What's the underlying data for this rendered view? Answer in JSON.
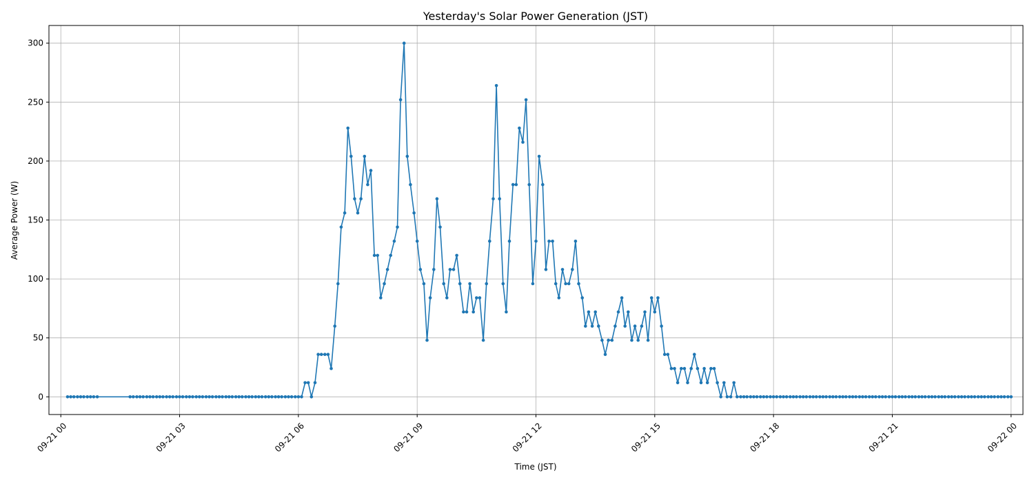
{
  "chart_data": {
    "type": "line",
    "title": "Yesterday's Solar Power Generation (JST)",
    "xlabel": "Time (JST)",
    "ylabel": "Average Power (W)",
    "x_unit": "hours since 09-21 00:00 JST",
    "xlim": [
      -0.3,
      24.3
    ],
    "ylim": [
      -15,
      315
    ],
    "grid": true,
    "x_ticks": [
      {
        "v": 0,
        "label": "09-21 00"
      },
      {
        "v": 3,
        "label": "09-21 03"
      },
      {
        "v": 6,
        "label": "09-21 06"
      },
      {
        "v": 9,
        "label": "09-21 09"
      },
      {
        "v": 12,
        "label": "09-21 12"
      },
      {
        "v": 15,
        "label": "09-21 15"
      },
      {
        "v": 18,
        "label": "09-21 18"
      },
      {
        "v": 21,
        "label": "09-21 21"
      },
      {
        "v": 24,
        "label": "09-22 00"
      }
    ],
    "y_ticks": [
      0,
      50,
      100,
      150,
      200,
      250,
      300
    ],
    "series": [
      {
        "name": "",
        "color": "#1f77b4",
        "x": [
          0.17,
          0.25,
          0.33,
          0.42,
          0.5,
          0.58,
          0.67,
          0.75,
          0.83,
          0.92,
          1.75,
          1.83,
          1.92,
          2,
          2.08,
          2.17,
          2.25,
          2.33,
          2.42,
          2.5,
          2.58,
          2.67,
          2.75,
          2.83,
          2.92,
          3,
          3.08,
          3.17,
          3.25,
          3.33,
          3.42,
          3.5,
          3.58,
          3.67,
          3.75,
          3.83,
          3.92,
          4,
          4.08,
          4.17,
          4.25,
          4.33,
          4.42,
          4.5,
          4.58,
          4.67,
          4.75,
          4.83,
          4.92,
          5,
          5.08,
          5.17,
          5.25,
          5.33,
          5.42,
          5.5,
          5.58,
          5.67,
          5.75,
          5.83,
          5.92,
          6,
          6.08,
          6.17,
          6.25,
          6.33,
          6.42,
          6.5,
          6.58,
          6.67,
          6.75,
          6.83,
          6.92,
          7,
          7.08,
          7.17,
          7.25,
          7.33,
          7.42,
          7.5,
          7.58,
          7.67,
          7.75,
          7.83,
          7.92,
          8,
          8.08,
          8.17,
          8.25,
          8.33,
          8.42,
          8.5,
          8.58,
          8.67,
          8.75,
          8.83,
          8.92,
          9,
          9.08,
          9.17,
          9.25,
          9.33,
          9.42,
          9.5,
          9.58,
          9.67,
          9.75,
          9.83,
          9.92,
          10,
          10.08,
          10.17,
          10.25,
          10.33,
          10.42,
          10.5,
          10.58,
          10.67,
          10.75,
          10.83,
          10.92,
          11,
          11.08,
          11.17,
          11.25,
          11.33,
          11.42,
          11.5,
          11.58,
          11.67,
          11.75,
          11.83,
          11.92,
          12,
          12.08,
          12.17,
          12.25,
          12.33,
          12.42,
          12.5,
          12.58,
          12.67,
          12.75,
          12.83,
          12.92,
          13,
          13.08,
          13.17,
          13.25,
          13.33,
          13.42,
          13.5,
          13.58,
          13.67,
          13.75,
          13.83,
          13.92,
          14,
          14.08,
          14.17,
          14.25,
          14.33,
          14.42,
          14.5,
          14.58,
          14.67,
          14.75,
          14.83,
          14.92,
          15,
          15.08,
          15.17,
          15.25,
          15.33,
          15.42,
          15.5,
          15.58,
          15.67,
          15.75,
          15.83,
          15.92,
          16,
          16.08,
          16.17,
          16.25,
          16.33,
          16.42,
          16.5,
          16.58,
          16.67,
          16.75,
          16.83,
          16.92,
          17,
          17.08,
          17.17,
          17.25,
          17.33,
          17.42,
          17.5,
          17.58,
          17.67,
          17.75,
          17.83,
          17.92,
          18,
          18.08,
          18.17,
          18.25,
          18.33,
          18.42,
          18.5,
          18.58,
          18.67,
          18.75,
          18.83,
          18.92,
          19,
          19.08,
          19.17,
          19.25,
          19.33,
          19.42,
          19.5,
          19.58,
          19.67,
          19.75,
          19.83,
          19.92,
          20,
          20.08,
          20.17,
          20.25,
          20.33,
          20.42,
          20.5,
          20.58,
          20.67,
          20.75,
          20.83,
          20.92,
          21,
          21.08,
          21.17,
          21.25,
          21.33,
          21.42,
          21.5,
          21.58,
          21.67,
          21.75,
          21.83,
          21.92,
          22,
          22.08,
          22.17,
          22.25,
          22.33,
          22.42,
          22.5,
          22.58,
          22.67,
          22.75,
          22.83,
          22.92,
          23,
          23.08,
          23.17,
          23.25,
          23.33,
          23.42,
          23.5,
          23.58,
          23.67,
          23.75,
          23.83,
          23.92,
          24
        ],
        "y": [
          0,
          0,
          0,
          0,
          0,
          0,
          0,
          0,
          0,
          0,
          0,
          0,
          0,
          0,
          0,
          0,
          0,
          0,
          0,
          0,
          0,
          0,
          0,
          0,
          0,
          0,
          0,
          0,
          0,
          0,
          0,
          0,
          0,
          0,
          0,
          0,
          0,
          0,
          0,
          0,
          0,
          0,
          0,
          0,
          0,
          0,
          0,
          0,
          0,
          0,
          0,
          0,
          0,
          0,
          0,
          0,
          0,
          0,
          0,
          0,
          0,
          0,
          0,
          12,
          12,
          0,
          12,
          36,
          36,
          36,
          36,
          24,
          60,
          96,
          144,
          156,
          228,
          204,
          168,
          156,
          168,
          204,
          180,
          192,
          120,
          120,
          84,
          96,
          108,
          120,
          132,
          144,
          252,
          300,
          204,
          180,
          156,
          132,
          108,
          96,
          48,
          84,
          108,
          168,
          144,
          96,
          84,
          108,
          108,
          120,
          96,
          72,
          72,
          96,
          72,
          84,
          84,
          48,
          96,
          132,
          168,
          264,
          168,
          96,
          72,
          132,
          180,
          180,
          228,
          216,
          252,
          180,
          96,
          132,
          204,
          180,
          108,
          132,
          132,
          96,
          84,
          108,
          96,
          96,
          108,
          132,
          96,
          84,
          60,
          72,
          60,
          72,
          60,
          48,
          36,
          48,
          48,
          60,
          72,
          84,
          60,
          72,
          48,
          60,
          48,
          60,
          72,
          48,
          84,
          72,
          84,
          60,
          36,
          36,
          24,
          24,
          12,
          24,
          24,
          12,
          24,
          36,
          24,
          12,
          24,
          12,
          24,
          24,
          12,
          0,
          12,
          0,
          0,
          12,
          0,
          0,
          0,
          0,
          0,
          0,
          0,
          0,
          0,
          0,
          0,
          0,
          0,
          0,
          0,
          0,
          0,
          0,
          0,
          0,
          0,
          0,
          0,
          0,
          0,
          0,
          0,
          0,
          0,
          0,
          0,
          0,
          0,
          0,
          0,
          0,
          0,
          0,
          0,
          0,
          0,
          0,
          0,
          0,
          0,
          0,
          0,
          0,
          0,
          0,
          0,
          0,
          0,
          0,
          0,
          0,
          0,
          0,
          0,
          0,
          0,
          0,
          0,
          0,
          0,
          0,
          0,
          0,
          0,
          0,
          0,
          0,
          0,
          0,
          0,
          0,
          0,
          0,
          0,
          0,
          0,
          0,
          0,
          0
        ]
      }
    ]
  }
}
